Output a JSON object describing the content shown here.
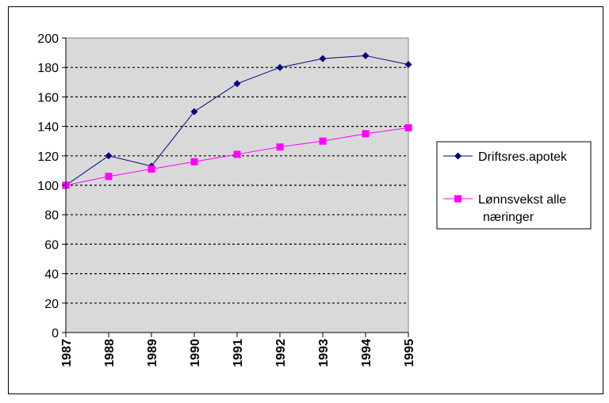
{
  "chart_data": {
    "type": "line",
    "categories": [
      "1987",
      "1988",
      "1989",
      "1990",
      "1991",
      "1992",
      "1993",
      "1994",
      "1995"
    ],
    "series": [
      {
        "name": "Driftsres.apotek",
        "color": "#000080",
        "marker": "diamond",
        "values": [
          100,
          120,
          113,
          150,
          169,
          180,
          186,
          188,
          182
        ]
      },
      {
        "name_lines": [
          "Lønnsvekst alle",
          "næringer"
        ],
        "color": "#ff00ff",
        "marker": "square",
        "values": [
          100,
          106,
          111,
          116,
          121,
          126,
          130,
          135,
          139
        ]
      }
    ],
    "ylim": [
      0,
      200
    ],
    "yticks": [
      0,
      20,
      40,
      60,
      80,
      100,
      120,
      140,
      160,
      180,
      200
    ],
    "grid": "horizontal-dashed",
    "plot_background": "#d9d9d9",
    "legend_position": "right"
  }
}
